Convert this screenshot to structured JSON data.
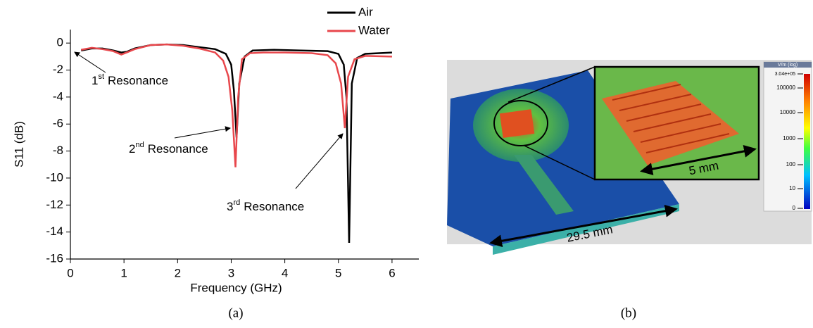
{
  "chart_data": {
    "type": "line",
    "xlabel": "Frequency (GHz)",
    "ylabel": "S11 (dB)",
    "xlim": [
      0,
      6.5
    ],
    "xticks": [
      0,
      1,
      2,
      3,
      4,
      5,
      6
    ],
    "ylim": [
      -16,
      1
    ],
    "yticks": [
      0,
      -2,
      -4,
      -6,
      -8,
      -10,
      -12,
      -14,
      -16
    ],
    "legend": "top-right",
    "series": [
      {
        "name": "Air",
        "color": "#000000",
        "x": [
          0.2,
          0.4,
          0.6,
          0.8,
          0.95,
          1.05,
          1.2,
          1.5,
          1.8,
          2.1,
          2.4,
          2.7,
          2.9,
          3.0,
          3.05,
          3.1,
          3.15,
          3.25,
          3.4,
          3.8,
          4.3,
          4.8,
          5.0,
          5.1,
          5.15,
          5.2,
          5.25,
          5.35,
          5.5,
          6.0
        ],
        "values": [
          -0.55,
          -0.4,
          -0.4,
          -0.55,
          -0.7,
          -0.65,
          -0.4,
          -0.15,
          -0.1,
          -0.15,
          -0.3,
          -0.45,
          -0.8,
          -1.6,
          -3.5,
          -7,
          -3,
          -1,
          -0.55,
          -0.5,
          -0.55,
          -0.6,
          -0.8,
          -1.6,
          -4,
          -14.8,
          -3,
          -1.1,
          -0.8,
          -0.7
        ]
      },
      {
        "name": "Water",
        "color": "#e8474c",
        "x": [
          0.2,
          0.4,
          0.6,
          0.8,
          0.95,
          1.05,
          1.2,
          1.5,
          1.8,
          2.1,
          2.4,
          2.7,
          2.85,
          2.95,
          3.02,
          3.08,
          3.13,
          3.2,
          3.35,
          3.6,
          4.0,
          4.5,
          4.8,
          4.95,
          5.05,
          5.12,
          5.18,
          5.3,
          5.5,
          6.0
        ],
        "values": [
          -0.5,
          -0.35,
          -0.45,
          -0.6,
          -0.85,
          -0.7,
          -0.45,
          -0.15,
          -0.1,
          -0.2,
          -0.4,
          -0.7,
          -1.3,
          -2.5,
          -5,
          -9.2,
          -4,
          -1.2,
          -0.75,
          -0.7,
          -0.7,
          -0.75,
          -0.9,
          -1.5,
          -3,
          -6.3,
          -2.5,
          -1.2,
          -0.95,
          -1.0
        ]
      }
    ],
    "annotations": [
      {
        "number": "1",
        "suffix": "st",
        "label": "Resonance"
      },
      {
        "number": "2",
        "suffix": "nd",
        "label": "Resonance"
      },
      {
        "number": "3",
        "suffix": "rd",
        "label": "Resonance"
      }
    ],
    "caption": "(a)"
  },
  "figure_b": {
    "caption": "(b)",
    "board_length": "29.5 mm",
    "inset_length": "5 mm",
    "colorbar_title": "V/m (log)",
    "colorbar_labels": [
      "3.04e+05",
      "100000",
      "10000",
      "1000",
      "100",
      "10",
      "0"
    ]
  }
}
